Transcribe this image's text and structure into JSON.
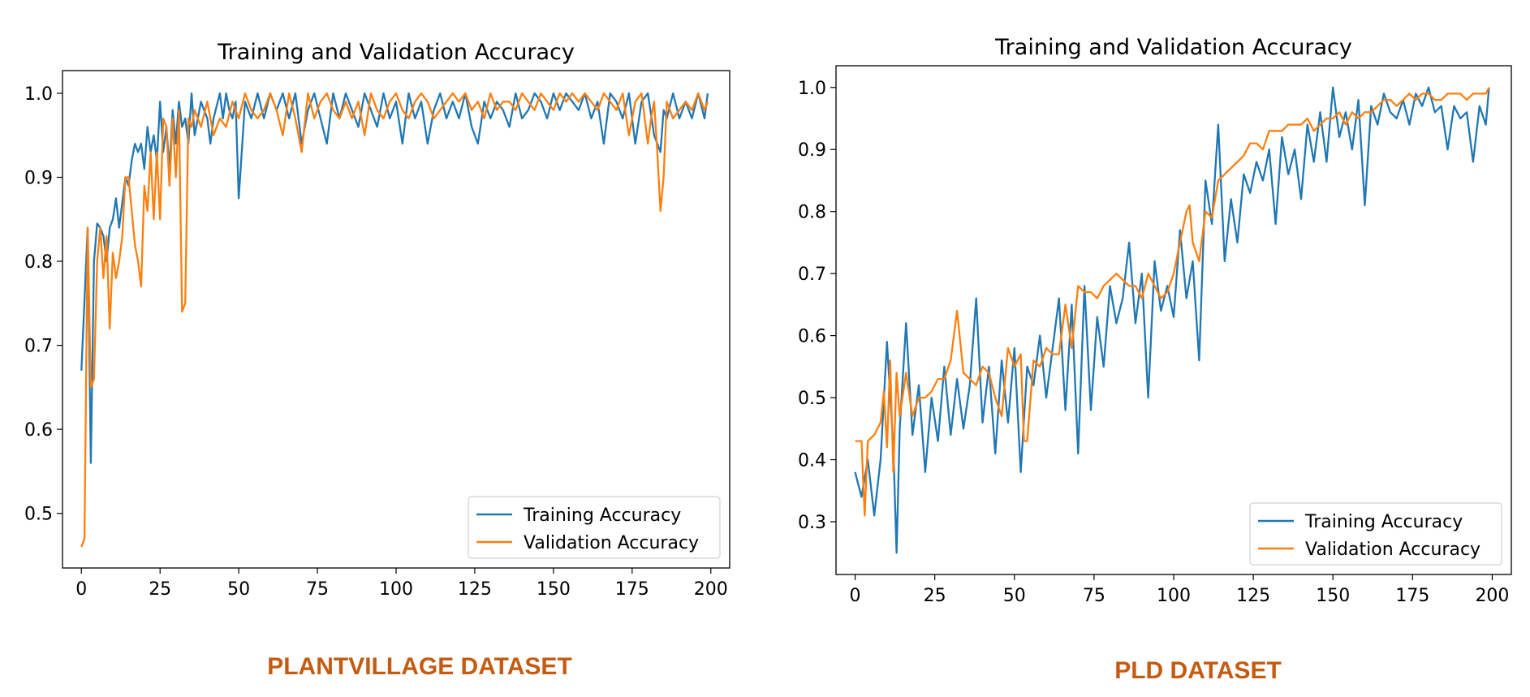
{
  "colors": {
    "training": "#1f77b4",
    "validation": "#ff7f0e",
    "caption": "#c55a11"
  },
  "chart_data": [
    {
      "type": "line",
      "title": "Training and Validation Accuracy",
      "caption": "PLANTVILLAGE DATASET",
      "xlabel": "",
      "ylabel": "",
      "xlim": [
        -6,
        206
      ],
      "ylim": [
        0.435,
        1.027
      ],
      "xticks": [
        "0",
        "25",
        "50",
        "75",
        "100",
        "125",
        "150",
        "175",
        "200"
      ],
      "yticks": [
        "0.5",
        "0.6",
        "0.7",
        "0.8",
        "0.9",
        "1.0"
      ],
      "legend": "lower-right",
      "grid": false,
      "series": [
        {
          "name": "Training Accuracy",
          "x": [
            0,
            2,
            3,
            4,
            5,
            6,
            7,
            8,
            9,
            10,
            11,
            12,
            14,
            15,
            16,
            17,
            18,
            19,
            20,
            21,
            22,
            23,
            24,
            25,
            26,
            27,
            28,
            29,
            30,
            31,
            32,
            33,
            34,
            35,
            36,
            37,
            38,
            40,
            41,
            42,
            44,
            45,
            46,
            47,
            48,
            49,
            50,
            52,
            54,
            56,
            58,
            60,
            62,
            64,
            66,
            68,
            70,
            72,
            74,
            76,
            78,
            80,
            82,
            84,
            86,
            88,
            90,
            92,
            94,
            96,
            98,
            100,
            102,
            104,
            106,
            108,
            110,
            112,
            114,
            116,
            118,
            120,
            122,
            124,
            126,
            128,
            130,
            132,
            134,
            136,
            138,
            140,
            142,
            144,
            146,
            148,
            150,
            152,
            154,
            156,
            158,
            160,
            162,
            164,
            166,
            168,
            170,
            172,
            174,
            176,
            178,
            180,
            182,
            184,
            185,
            186,
            188,
            190,
            192,
            194,
            196,
            198,
            199
          ],
          "y": [
            0.67,
            0.84,
            0.56,
            0.8,
            0.845,
            0.84,
            0.83,
            0.8,
            0.84,
            0.85,
            0.875,
            0.84,
            0.9,
            0.89,
            0.92,
            0.94,
            0.93,
            0.94,
            0.91,
            0.96,
            0.93,
            0.95,
            0.92,
            0.99,
            0.93,
            0.96,
            0.91,
            0.98,
            0.94,
            0.99,
            0.96,
            0.97,
            0.94,
            1.0,
            0.95,
            0.97,
            0.99,
            0.97,
            0.94,
            0.97,
            1.0,
            0.97,
            1.0,
            0.98,
            0.97,
            0.99,
            0.875,
            0.99,
            0.97,
            1.0,
            0.97,
            1.0,
            0.98,
            1.0,
            0.97,
            1.0,
            0.94,
            0.98,
            1.0,
            0.97,
            0.94,
            1.0,
            0.97,
            1.0,
            0.98,
            0.96,
            1.0,
            0.98,
            0.96,
            1.0,
            0.97,
            0.99,
            0.94,
            1.0,
            0.97,
            0.99,
            0.94,
            0.98,
            1.0,
            0.97,
            0.99,
            0.97,
            1.0,
            0.96,
            0.94,
            0.99,
            0.97,
            0.99,
            0.98,
            0.96,
            1.0,
            0.97,
            0.98,
            1.0,
            0.99,
            0.97,
            1.0,
            0.98,
            1.0,
            0.99,
            0.98,
            1.0,
            0.97,
            0.99,
            0.94,
            1.0,
            0.99,
            0.97,
            1.0,
            0.94,
            0.99,
            1.0,
            0.95,
            0.93,
            0.98,
            0.97,
            1.0,
            0.97,
            0.99,
            0.97,
            1.0,
            0.97,
            1.0
          ]
        },
        {
          "name": "Validation Accuracy",
          "x": [
            0,
            1,
            2,
            3,
            4,
            5,
            6,
            7,
            8,
            9,
            10,
            11,
            12,
            13,
            14,
            15,
            16,
            17,
            18,
            19,
            20,
            21,
            22,
            23,
            24,
            25,
            26,
            27,
            28,
            29,
            30,
            31,
            32,
            33,
            34,
            35,
            36,
            38,
            40,
            42,
            44,
            46,
            48,
            50,
            52,
            54,
            56,
            58,
            60,
            62,
            64,
            66,
            68,
            70,
            72,
            74,
            76,
            78,
            80,
            82,
            84,
            86,
            88,
            90,
            92,
            94,
            96,
            98,
            100,
            102,
            104,
            106,
            108,
            110,
            112,
            114,
            116,
            118,
            120,
            122,
            124,
            126,
            128,
            130,
            132,
            134,
            136,
            138,
            140,
            142,
            144,
            146,
            148,
            150,
            152,
            154,
            156,
            158,
            160,
            162,
            164,
            166,
            168,
            170,
            172,
            174,
            176,
            178,
            180,
            181,
            182,
            183,
            184,
            185,
            186,
            188,
            190,
            192,
            194,
            196,
            198,
            199
          ],
          "y": [
            0.46,
            0.47,
            0.84,
            0.65,
            0.66,
            0.8,
            0.84,
            0.78,
            0.83,
            0.72,
            0.81,
            0.78,
            0.8,
            0.83,
            0.9,
            0.9,
            0.86,
            0.82,
            0.8,
            0.77,
            0.89,
            0.86,
            0.93,
            0.85,
            0.93,
            0.85,
            0.97,
            0.96,
            0.89,
            0.97,
            0.9,
            0.98,
            0.74,
            0.75,
            0.97,
            0.96,
            0.98,
            0.96,
            0.99,
            0.95,
            0.97,
            0.96,
            0.99,
            0.97,
            1.0,
            0.98,
            0.97,
            0.98,
            1.0,
            0.98,
            0.95,
            1.0,
            0.97,
            0.93,
            1.0,
            0.97,
            0.99,
            1.0,
            0.98,
            0.97,
            0.99,
            0.97,
            0.99,
            0.95,
            1.0,
            0.98,
            0.97,
            0.99,
            1.0,
            0.98,
            0.97,
            0.99,
            1.0,
            0.99,
            0.97,
            0.98,
            0.99,
            1.0,
            0.99,
            1.0,
            0.98,
            0.99,
            0.97,
            1.0,
            0.98,
            0.99,
            0.99,
            0.98,
            1.0,
            0.99,
            0.98,
            1.0,
            0.99,
            0.98,
            1.0,
            0.99,
            1.0,
            0.99,
            1.0,
            0.99,
            0.98,
            1.0,
            0.99,
            0.98,
            1.0,
            0.95,
            0.99,
            1.0,
            0.94,
            0.97,
            0.99,
            0.93,
            0.86,
            0.9,
            0.99,
            0.97,
            0.98,
            0.99,
            0.98,
            1.0,
            0.98,
            0.99
          ]
        }
      ]
    },
    {
      "type": "line",
      "title": "Training and Validation Accuracy",
      "caption": "PLD DATASET",
      "xlabel": "",
      "ylabel": "",
      "xlim": [
        -6,
        206
      ],
      "ylim": [
        0.215,
        1.035
      ],
      "xticks": [
        "0",
        "25",
        "50",
        "75",
        "100",
        "125",
        "150",
        "175",
        "200"
      ],
      "yticks": [
        "0.3",
        "0.4",
        "0.5",
        "0.6",
        "0.7",
        "0.8",
        "0.9",
        "1.0"
      ],
      "legend": "lower-right",
      "grid": false,
      "series": [
        {
          "name": "Training Accuracy",
          "x": [
            0,
            2,
            4,
            6,
            8,
            10,
            12,
            13,
            14,
            16,
            18,
            20,
            22,
            24,
            26,
            28,
            30,
            32,
            34,
            36,
            38,
            40,
            42,
            44,
            46,
            48,
            50,
            52,
            54,
            56,
            58,
            60,
            62,
            64,
            66,
            68,
            70,
            72,
            74,
            76,
            78,
            80,
            82,
            84,
            86,
            88,
            90,
            92,
            94,
            96,
            98,
            100,
            102,
            104,
            106,
            108,
            110,
            112,
            114,
            116,
            118,
            120,
            122,
            124,
            126,
            128,
            130,
            132,
            134,
            136,
            138,
            140,
            142,
            144,
            146,
            148,
            150,
            152,
            154,
            156,
            158,
            160,
            162,
            164,
            166,
            168,
            170,
            172,
            174,
            176,
            178,
            180,
            182,
            184,
            186,
            188,
            190,
            192,
            194,
            196,
            198,
            199
          ],
          "y": [
            0.38,
            0.34,
            0.4,
            0.31,
            0.4,
            0.59,
            0.42,
            0.25,
            0.45,
            0.62,
            0.44,
            0.52,
            0.38,
            0.5,
            0.43,
            0.55,
            0.44,
            0.53,
            0.45,
            0.52,
            0.66,
            0.46,
            0.55,
            0.41,
            0.56,
            0.46,
            0.58,
            0.38,
            0.55,
            0.52,
            0.6,
            0.5,
            0.58,
            0.66,
            0.48,
            0.65,
            0.41,
            0.68,
            0.48,
            0.63,
            0.55,
            0.68,
            0.62,
            0.66,
            0.75,
            0.62,
            0.7,
            0.5,
            0.72,
            0.64,
            0.68,
            0.63,
            0.77,
            0.66,
            0.72,
            0.56,
            0.85,
            0.78,
            0.94,
            0.72,
            0.82,
            0.75,
            0.86,
            0.83,
            0.88,
            0.85,
            0.9,
            0.78,
            0.92,
            0.86,
            0.9,
            0.82,
            0.94,
            0.88,
            0.96,
            0.88,
            1.0,
            0.92,
            0.96,
            0.9,
            0.98,
            0.81,
            0.97,
            0.94,
            0.99,
            0.96,
            0.95,
            0.98,
            0.94,
            0.99,
            0.97,
            1.0,
            0.96,
            0.97,
            0.9,
            0.97,
            0.95,
            0.96,
            0.88,
            0.97,
            0.94,
            1.0
          ]
        },
        {
          "name": "Validation Accuracy",
          "x": [
            0,
            2,
            3,
            4,
            6,
            8,
            9,
            10,
            11,
            12,
            13,
            14,
            16,
            18,
            20,
            22,
            24,
            26,
            28,
            30,
            32,
            34,
            36,
            38,
            40,
            42,
            44,
            46,
            48,
            50,
            52,
            53,
            54,
            56,
            58,
            60,
            62,
            64,
            66,
            68,
            70,
            72,
            74,
            76,
            78,
            80,
            82,
            84,
            86,
            88,
            90,
            92,
            94,
            96,
            98,
            100,
            102,
            104,
            105,
            106,
            108,
            110,
            112,
            114,
            116,
            118,
            120,
            122,
            124,
            126,
            128,
            130,
            132,
            134,
            136,
            138,
            140,
            142,
            144,
            146,
            148,
            150,
            152,
            154,
            156,
            158,
            160,
            162,
            164,
            166,
            168,
            170,
            172,
            174,
            176,
            178,
            180,
            182,
            184,
            186,
            188,
            190,
            192,
            194,
            196,
            198,
            199
          ],
          "y": [
            0.43,
            0.43,
            0.31,
            0.43,
            0.44,
            0.46,
            0.51,
            0.42,
            0.56,
            0.38,
            0.54,
            0.47,
            0.54,
            0.47,
            0.5,
            0.5,
            0.51,
            0.53,
            0.53,
            0.56,
            0.64,
            0.54,
            0.53,
            0.52,
            0.55,
            0.54,
            0.5,
            0.47,
            0.58,
            0.55,
            0.57,
            0.43,
            0.43,
            0.56,
            0.55,
            0.58,
            0.57,
            0.57,
            0.65,
            0.58,
            0.68,
            0.67,
            0.67,
            0.66,
            0.68,
            0.69,
            0.7,
            0.69,
            0.68,
            0.68,
            0.66,
            0.7,
            0.68,
            0.66,
            0.67,
            0.7,
            0.75,
            0.8,
            0.81,
            0.75,
            0.72,
            0.8,
            0.79,
            0.85,
            0.86,
            0.87,
            0.88,
            0.89,
            0.91,
            0.91,
            0.9,
            0.93,
            0.93,
            0.93,
            0.94,
            0.94,
            0.94,
            0.95,
            0.93,
            0.94,
            0.95,
            0.95,
            0.96,
            0.94,
            0.96,
            0.95,
            0.96,
            0.96,
            0.97,
            0.98,
            0.98,
            0.97,
            0.98,
            0.99,
            0.98,
            0.99,
            0.99,
            0.98,
            0.98,
            0.99,
            0.99,
            0.99,
            0.98,
            0.99,
            0.99,
            0.99,
            1.0
          ]
        }
      ]
    }
  ]
}
